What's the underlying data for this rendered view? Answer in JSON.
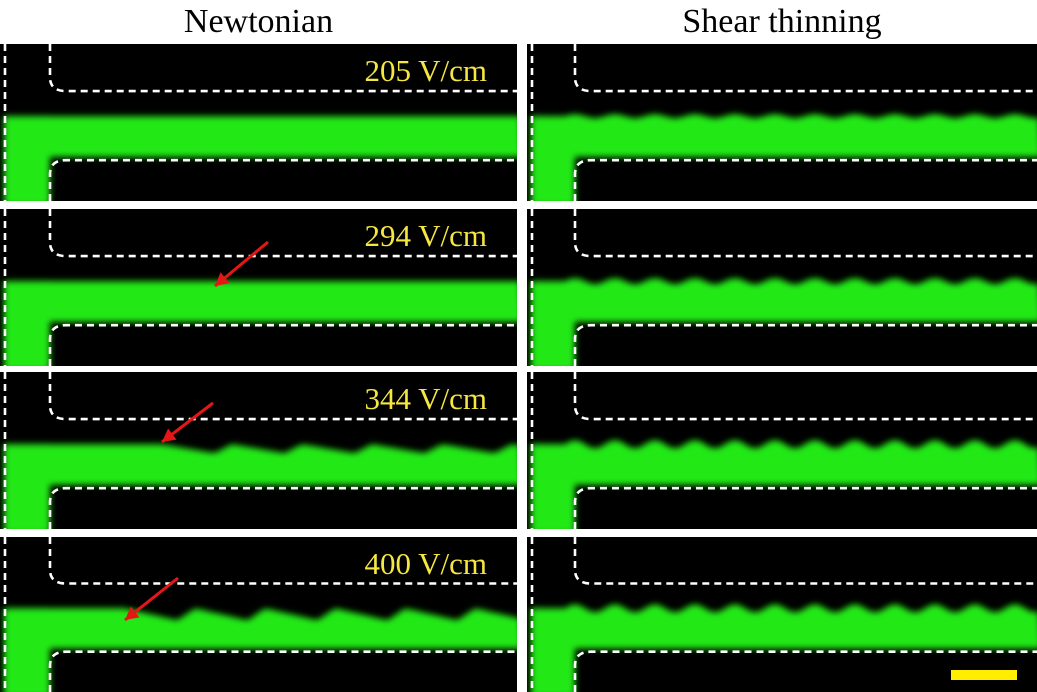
{
  "columns": [
    {
      "title": "Newtonian",
      "key": "newtonian"
    },
    {
      "title": "Shear thinning",
      "key": "shear_thinning"
    }
  ],
  "rows": [
    {
      "field_label": "205 V/cm"
    },
    {
      "field_label": "294 V/cm"
    },
    {
      "field_label": "344 V/cm"
    },
    {
      "field_label": "400 V/cm"
    }
  ],
  "colors": {
    "background": "#000000",
    "fluid": "#22e818",
    "channel_wall": "#ffffff",
    "arrow": "#e51616",
    "label": "#f5e642",
    "scale_bar": "#ffee00"
  }
}
